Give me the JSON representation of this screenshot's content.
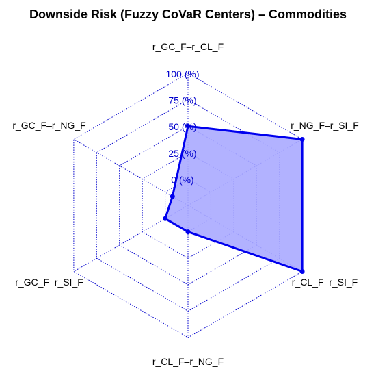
{
  "chart_data": {
    "type": "radar",
    "title": "Downside Risk (Fuzzy CoVaR Centers) – Commodities",
    "axes": [
      "r_GC_F–r_CL_F",
      "r_NG_F–r_SI_F",
      "r_CL_F–r_SI_F",
      "r_CL_F–r_NG_F",
      "r_GC_F–r_SI_F",
      "r_GC_F–r_NG_F"
    ],
    "radial_ticks": [
      "0 (%)",
      "25 (%)",
      "50 (%)",
      "75 (%)",
      "100 (%)"
    ],
    "radial_min": -25,
    "radial_max": 100,
    "series": [
      {
        "values": [
          50,
          100,
          100,
          0,
          0,
          -8
        ]
      }
    ],
    "colors": {
      "series_line": "#0000ee",
      "series_fill": "#aaaaff",
      "grid": "#0000cc",
      "tick_text": "#0000cc"
    },
    "grid": true,
    "legend": "none"
  }
}
